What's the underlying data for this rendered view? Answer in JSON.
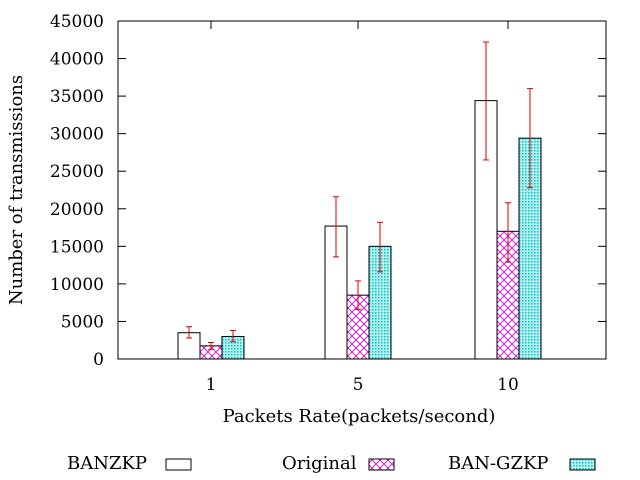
{
  "chart_data": {
    "type": "bar",
    "xlabel": "Packets Rate(packets/second)",
    "ylabel": "Number of transmissions",
    "ylim": [
      0,
      45000
    ],
    "yticks": [
      0,
      5000,
      10000,
      15000,
      20000,
      25000,
      30000,
      35000,
      40000,
      45000
    ],
    "categories": [
      "1",
      "5",
      "10"
    ],
    "grid": false,
    "legend_position": "bottom",
    "series": [
      {
        "name": "BANZKP",
        "style": "empty",
        "values": [
          3500,
          17700,
          34400
        ],
        "err_low": [
          2800,
          13600,
          26500
        ],
        "err_high": [
          4300,
          21600,
          42200
        ]
      },
      {
        "name": "Original",
        "style": "crosshatch",
        "values": [
          1750,
          8500,
          17000
        ],
        "err_low": [
          1300,
          6600,
          12900
        ],
        "err_high": [
          2200,
          10400,
          20800
        ]
      },
      {
        "name": "BAN-GZKP",
        "style": "dots",
        "values": [
          3000,
          15000,
          29400
        ],
        "err_low": [
          2300,
          11600,
          22800
        ],
        "err_high": [
          3800,
          18200,
          36000
        ]
      }
    ],
    "colors": {
      "axis": "#000000",
      "errorbar": "#e00000",
      "hatch": "#cc22cc",
      "dots": "#00c8c8",
      "dots_bg": "#b8f0f0"
    }
  }
}
